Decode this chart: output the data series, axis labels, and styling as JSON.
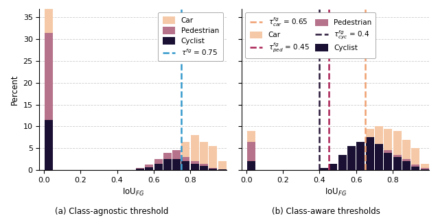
{
  "color_car": "#f5c9a8",
  "color_ped": "#b5728a",
  "color_cyc": "#1a1033",
  "bin_edges": [
    0.0,
    0.05,
    0.1,
    0.15,
    0.2,
    0.25,
    0.3,
    0.35,
    0.4,
    0.45,
    0.5,
    0.55,
    0.6,
    0.65,
    0.7,
    0.75,
    0.8,
    0.85,
    0.9,
    0.95,
    1.0
  ],
  "left_car": [
    37.0,
    0,
    0,
    0,
    0,
    0,
    0,
    0,
    0,
    0,
    0.4,
    0.8,
    1.5,
    3.0,
    4.5,
    6.5,
    8.0,
    6.5,
    5.5,
    2.0
  ],
  "left_ped": [
    31.5,
    0,
    0,
    0,
    0,
    0,
    0,
    0,
    0,
    0,
    0.4,
    1.2,
    2.5,
    4.0,
    4.5,
    3.0,
    2.0,
    1.5,
    0.5,
    0.2
  ],
  "left_cyc": [
    11.5,
    0,
    0,
    0,
    0,
    0,
    0,
    0,
    0,
    0,
    0.3,
    0.7,
    1.5,
    2.5,
    2.5,
    2.0,
    1.5,
    1.0,
    0.3,
    0.1
  ],
  "right_car": [
    9.0,
    0,
    0,
    0,
    0,
    0,
    0,
    0,
    0.2,
    0.5,
    1.2,
    3.0,
    6.0,
    9.5,
    10.0,
    9.5,
    9.0,
    7.0,
    5.0,
    1.5
  ],
  "right_ped": [
    6.5,
    0,
    0,
    0,
    0,
    0,
    0,
    0,
    0.3,
    0.8,
    2.0,
    4.5,
    6.5,
    7.5,
    6.0,
    4.5,
    3.5,
    2.5,
    1.2,
    0.4
  ],
  "right_cyc": [
    2.0,
    0,
    0,
    0,
    0,
    0,
    0,
    0,
    0.5,
    1.5,
    3.5,
    5.5,
    6.5,
    7.5,
    6.0,
    4.0,
    3.0,
    2.0,
    0.8,
    0.2
  ],
  "thresh_agnostic": 0.75,
  "thresh_car": 0.65,
  "thresh_ped": 0.45,
  "thresh_cyc": 0.4,
  "color_thresh_agnostic": "#3399cc",
  "color_thresh_car": "#f0a070",
  "color_thresh_ped": "#aa2255",
  "color_thresh_cyc": "#2a1a3a",
  "ylim_left": [
    0,
    37
  ],
  "ylim_right": [
    0,
    37
  ],
  "yticks": [
    0,
    5,
    10,
    15,
    20,
    25,
    30,
    35
  ],
  "ylabel": "Percent",
  "xlabel": "IoU$_{FG}$",
  "title_left": "(a) Class-agnostic threshold",
  "title_right": "(b) Class-aware thresholds",
  "legend_car": "Car",
  "legend_ped": "Pedestrian",
  "legend_cyc": "Cyclist",
  "legend_tau_agnostic": "$\\tau^{fg}$ = 0.75",
  "legend_tau_car": "$\\tau^{fg}_{car}$ = 0.65",
  "legend_tau_ped": "$\\tau^{fg}_{ped}$ = 0.45",
  "legend_tau_cyc": "$\\tau^{fg}_{cyc}$ = 0.4",
  "xlim": [
    -0.025,
    1.0
  ],
  "xticks": [
    0.0,
    0.2,
    0.4,
    0.6,
    0.8
  ]
}
